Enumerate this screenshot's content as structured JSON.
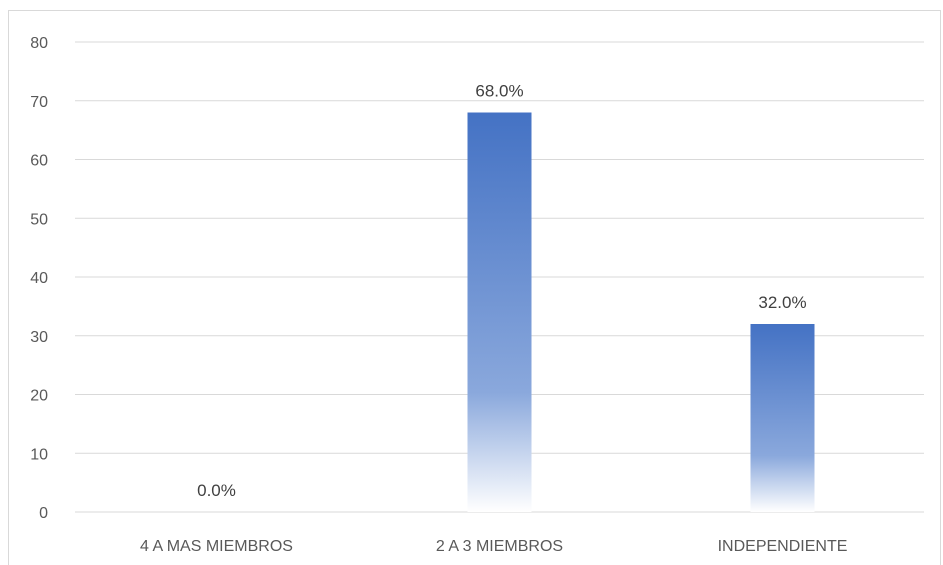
{
  "chart_data": {
    "type": "bar",
    "categories": [
      "4 A MAS MIEMBROS",
      "2 A 3 MIEMBROS",
      "INDEPENDIENTE"
    ],
    "values": [
      0,
      68,
      32
    ],
    "data_labels": [
      "0.0%",
      "68.0%",
      "32.0%"
    ],
    "title": "",
    "xlabel": "",
    "ylabel": "",
    "ylim": [
      0,
      80
    ],
    "yticks": [
      "0",
      "10",
      "20",
      "30",
      "40",
      "50",
      "60",
      "70",
      "80"
    ],
    "grid": true,
    "legend": "none",
    "bar_color_top": "#4472c4",
    "bar_color_bottom": "#ffffff",
    "grid_color": "#d9d9d9"
  }
}
